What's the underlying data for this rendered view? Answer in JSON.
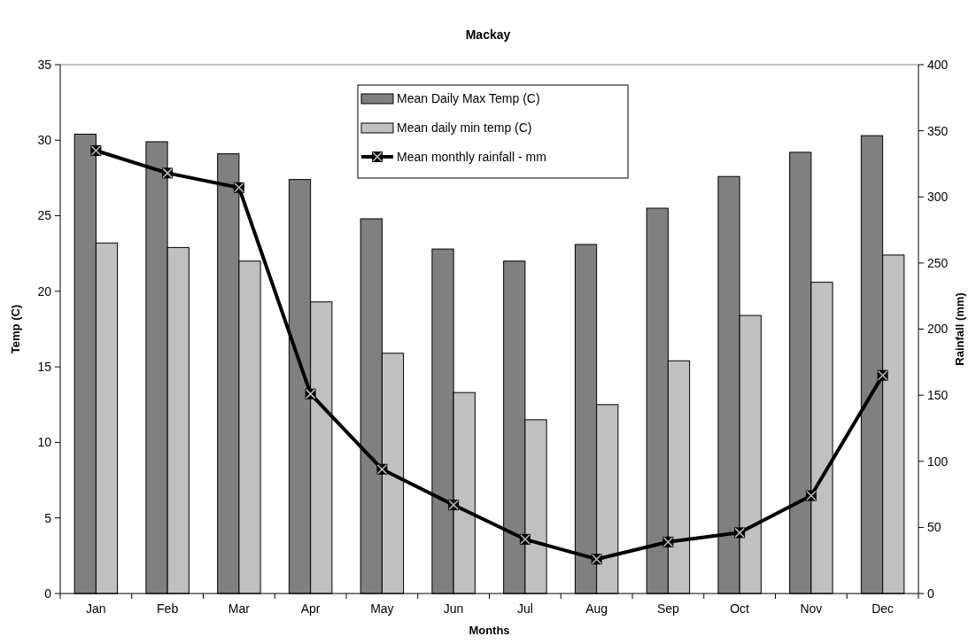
{
  "chart_data": {
    "type": "bar",
    "title": "Mackay",
    "xlabel": "Months",
    "ylabel": "Temp (C)",
    "y2label": "Rainfall (mm)",
    "categories": [
      "Jan",
      "Feb",
      "Mar",
      "Apr",
      "May",
      "Jun",
      "Jul",
      "Aug",
      "Sep",
      "Oct",
      "Nov",
      "Dec"
    ],
    "series": [
      {
        "name": "Mean Daily Max Temp (C)",
        "color": "#808080",
        "values": [
          30.4,
          29.9,
          29.1,
          27.4,
          24.8,
          22.8,
          22.0,
          23.1,
          25.5,
          27.6,
          29.2,
          30.3
        ]
      },
      {
        "name": "Mean daily min temp  (C)",
        "color": "#c0c0c0",
        "values": [
          23.2,
          22.9,
          22.0,
          19.3,
          15.9,
          13.3,
          11.5,
          12.5,
          15.4,
          18.4,
          20.6,
          22.4
        ]
      },
      {
        "name": "Mean monthly rainfall - mm",
        "type": "line",
        "axis": "y2",
        "color": "#000000",
        "marker": "square",
        "line_style": "solid",
        "values": [
          335,
          318,
          307,
          151,
          94,
          67,
          41,
          26,
          39,
          46,
          74,
          165
        ]
      }
    ],
    "ylim": [
      0,
      35
    ],
    "yticks": [
      0,
      5,
      10,
      15,
      20,
      25,
      30,
      35
    ],
    "y2lim": [
      0,
      400
    ],
    "y2ticks": [
      0,
      50,
      100,
      150,
      200,
      250,
      300,
      350,
      400
    ],
    "grid": false,
    "legend": "top"
  }
}
